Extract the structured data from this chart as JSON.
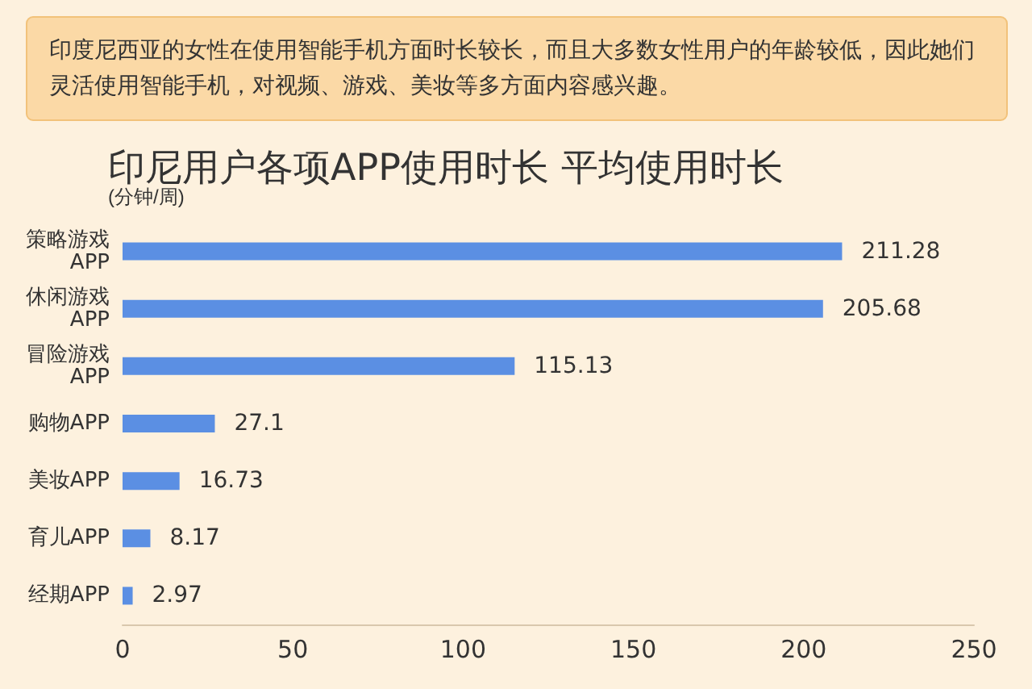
{
  "chart_data": {
    "type": "bar",
    "orientation": "horizontal",
    "title": "印尼用户各项APP使用时长 平均使用时长",
    "subtitle": "(分钟/周)",
    "annotations": [
      "印度尼西亚的女性在使用智能手机方面时长较长，而且大多数女性用户的年龄较低，因此她们灵活使用智能手机，对视频、游戏、美妆等多方面内容感兴趣。"
    ],
    "categories": [
      "策略游戏APP",
      "休闲游戏APP",
      "冒险游戏APP",
      "购物APP",
      "美妆APP",
      "育儿APP",
      "经期APP"
    ],
    "values": [
      211.28,
      205.68,
      115.13,
      27.1,
      16.73,
      8.17,
      2.97
    ],
    "color": "#5b8fe3",
    "xlim": [
      0,
      250
    ],
    "xticks": [
      0,
      50,
      100,
      150,
      200,
      250
    ],
    "data_labels": true,
    "grid": false
  }
}
